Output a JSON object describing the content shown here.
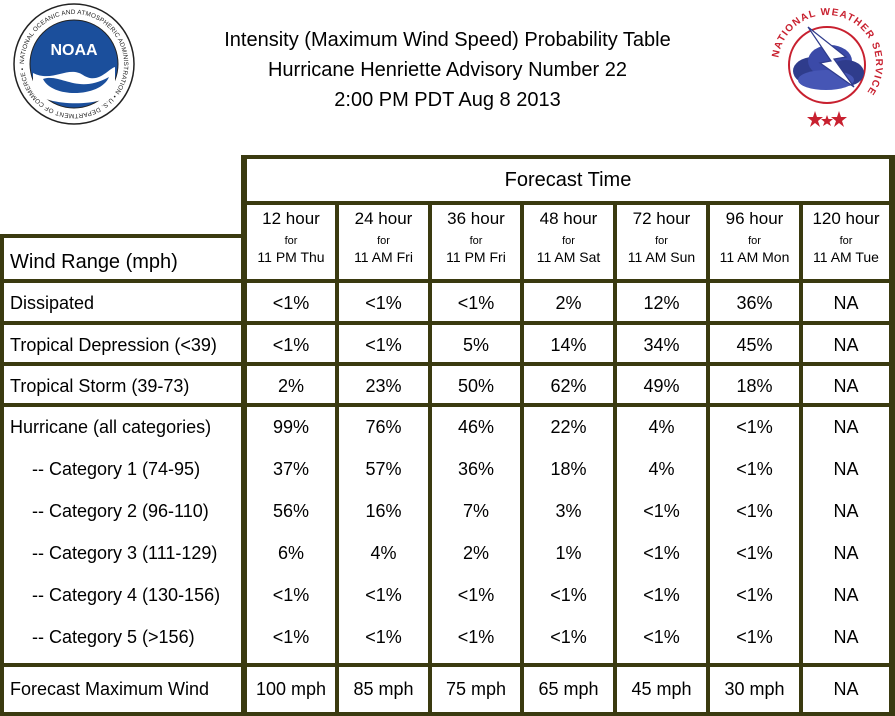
{
  "title": {
    "line1": "Intensity (Maximum Wind Speed) Probability Table",
    "line2": "Hurricane Henriette Advisory Number 22",
    "line3": "2:00 PM PDT Aug 8 2013"
  },
  "logos": {
    "noaa": {
      "text": "NOAA",
      "ring_text": "NATIONAL OCEANIC AND ATMOSPHERIC ADMINISTRATION • U.S. DEPARTMENT OF COMMERCE •",
      "color": "#1b4f9c"
    },
    "nws": {
      "ring_text": "NATIONAL WEATHER SERVICE",
      "color": "#c8202f"
    }
  },
  "colors": {
    "border": "#3a3a10",
    "background": "#ffffff",
    "text": "#000000"
  },
  "table": {
    "header": {
      "group_label": "Forecast Time",
      "wind_range_label": "Wind Range (mph)",
      "columns": [
        {
          "hours": "12 hour",
          "for": "for",
          "time": "11 PM Thu"
        },
        {
          "hours": "24 hour",
          "for": "for",
          "time": "11 AM Fri"
        },
        {
          "hours": "36 hour",
          "for": "for",
          "time": "11 PM Fri"
        },
        {
          "hours": "48 hour",
          "for": "for",
          "time": "11 AM Sat"
        },
        {
          "hours": "72 hour",
          "for": "for",
          "time": "11 AM Sun"
        },
        {
          "hours": "96 hour",
          "for": "for",
          "time": "11 AM Mon"
        },
        {
          "hours": "120 hour",
          "for": "for",
          "time": "11 AM Tue"
        }
      ]
    },
    "rows": [
      {
        "label": "Dissipated",
        "values": [
          "<1%",
          "<1%",
          "<1%",
          "2%",
          "12%",
          "36%",
          "NA"
        ]
      },
      {
        "label": "Tropical Depression (<39)",
        "values": [
          "<1%",
          "<1%",
          "5%",
          "14%",
          "34%",
          "45%",
          "NA"
        ]
      },
      {
        "label": "Tropical Storm (39-73)",
        "values": [
          "2%",
          "23%",
          "50%",
          "62%",
          "49%",
          "18%",
          "NA"
        ]
      },
      {
        "label": "Hurricane (all categories)",
        "values": [
          "99%",
          "76%",
          "46%",
          "22%",
          "4%",
          "<1%",
          "NA"
        ]
      },
      {
        "label": "-- Category 1 (74-95)",
        "values": [
          "37%",
          "57%",
          "36%",
          "18%",
          "4%",
          "<1%",
          "NA"
        ]
      },
      {
        "label": "-- Category 2 (96-110)",
        "values": [
          "56%",
          "16%",
          "7%",
          "3%",
          "<1%",
          "<1%",
          "NA"
        ]
      },
      {
        "label": "-- Category 3 (111-129)",
        "values": [
          "6%",
          "4%",
          "2%",
          "1%",
          "<1%",
          "<1%",
          "NA"
        ]
      },
      {
        "label": "-- Category 4 (130-156)",
        "values": [
          "<1%",
          "<1%",
          "<1%",
          "<1%",
          "<1%",
          "<1%",
          "NA"
        ]
      },
      {
        "label": "-- Category 5 (>156)",
        "values": [
          "<1%",
          "<1%",
          "<1%",
          "<1%",
          "<1%",
          "<1%",
          "NA"
        ]
      }
    ],
    "footer": {
      "label": "Forecast Maximum Wind",
      "values": [
        "100 mph",
        "85 mph",
        "75 mph",
        "65 mph",
        "45 mph",
        "30 mph",
        "NA"
      ]
    }
  }
}
